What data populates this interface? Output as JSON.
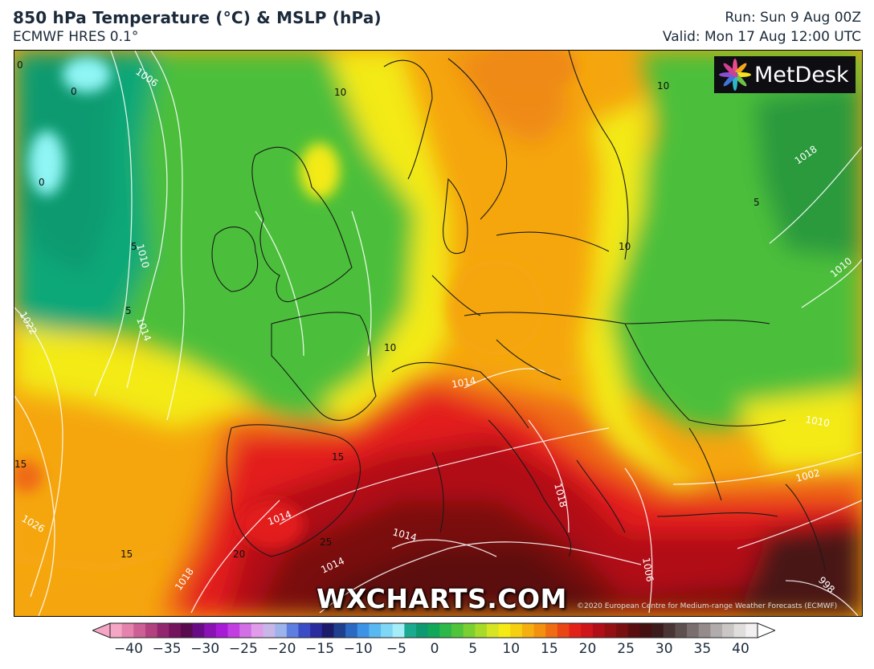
{
  "header": {
    "title": "850 hPa Temperature (°C) & MSLP (hPa)",
    "subtitle": "ECMWF HRES 0.1°",
    "run": "Run: Sun 9 Aug 00Z",
    "valid": "Valid: Mon 17 Aug 12:00 UTC"
  },
  "logo": {
    "text": "MetDesk",
    "icon": "metdesk-flower-icon"
  },
  "watermark": "WXCHARTS.COM",
  "credit": "©2020 European Centre for Medium-range Weather Forecasts (ECMWF)",
  "map": {
    "temperature_labels": [
      "0",
      "0",
      "0",
      "5",
      "5",
      "10",
      "10",
      "10",
      "10",
      "5",
      "15",
      "15",
      "15",
      "20",
      "25"
    ],
    "pressure_labels": [
      "1006",
      "1010",
      "1014",
      "1022",
      "1018",
      "1010",
      "1014",
      "1014",
      "1014",
      "1014",
      "1026",
      "1018",
      "1018",
      "1006",
      "1002",
      "998",
      "1010"
    ],
    "colors": {
      "teal": "#0fa878",
      "green": "#4cbf3a",
      "lightgreen": "#62cc3c",
      "yellow": "#f3ea12",
      "orange": "#f5a60f",
      "deeporange": "#ef6a12",
      "red": "#e31a1c",
      "darkred": "#9a0f12",
      "maroon": "#5d0f12",
      "cyan": "#8ff5f5"
    }
  },
  "colorbar": {
    "ticks": [
      "−40",
      "−35",
      "−30",
      "−25",
      "−20",
      "−15",
      "−10",
      "−5",
      "0",
      "5",
      "10",
      "15",
      "20",
      "25",
      "30",
      "35",
      "40"
    ],
    "colors": [
      "#f4a6c4",
      "#e483ad",
      "#cc5f95",
      "#b34180",
      "#93276f",
      "#74145d",
      "#5a0a4e",
      "#6a0b86",
      "#8a12b5",
      "#a81bd6",
      "#c13fe0",
      "#d26fe6",
      "#e09ce9",
      "#c9b6e9",
      "#9db3ea",
      "#5e7ee0",
      "#3b4dc6",
      "#2a2b9f",
      "#1b1a6b",
      "#1f3f8f",
      "#2b69c2",
      "#3d93e6",
      "#58b8f1",
      "#7fd6f5",
      "#a5eef7",
      "#1ba98f",
      "#0e9a70",
      "#11a85a",
      "#2db84a",
      "#50c43a",
      "#7ad030",
      "#a7db2a",
      "#d5e523",
      "#f6ea14",
      "#f6cf10",
      "#f5b00f",
      "#f4900f",
      "#f06c12",
      "#e94515",
      "#e22218",
      "#cd151a",
      "#b10f17",
      "#941013",
      "#77100f",
      "#5b0e0e",
      "#451010",
      "#3b1b1b",
      "#4a3434",
      "#5f5050",
      "#7a6e6e",
      "#958b8b",
      "#b1abab",
      "#cac6c6",
      "#e0dddd",
      "#f2f0f0"
    ]
  }
}
